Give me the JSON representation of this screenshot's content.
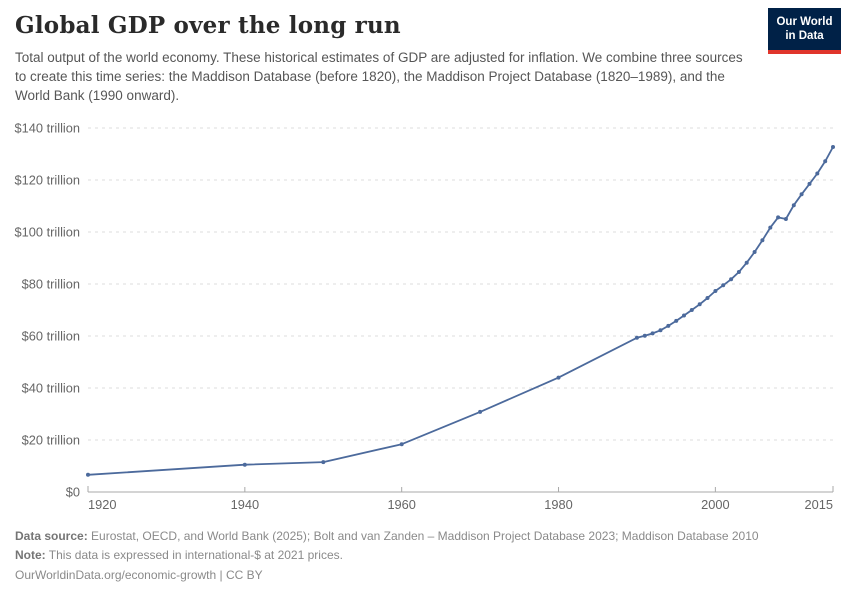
{
  "header": {
    "logo": {
      "line1": "Our World",
      "line2": "in Data",
      "bg_color": "#002147",
      "accent_color": "#e0352b"
    }
  },
  "chart_data": {
    "type": "line",
    "title": "Global GDP over the long run",
    "subtitle": "Total output of the world economy. These historical estimates of GDP are adjusted for inflation. We combine three sources to create this time series: the Maddison Database (before 1820), the Maddison Project Database (1820–1989), and the World Bank (1990 onward).",
    "series": [
      {
        "name": "World",
        "x": [
          1920,
          1940,
          1950,
          1960,
          1970,
          1980,
          1990,
          1991,
          1992,
          1993,
          1994,
          1995,
          1996,
          1997,
          1998,
          1999,
          2000,
          2001,
          2002,
          2003,
          2004,
          2005,
          2006,
          2007,
          2008,
          2009,
          2010,
          2011,
          2012,
          2013,
          2014,
          2015
        ],
        "values": [
          6.6,
          10.5,
          11.5,
          18.4,
          30.8,
          44.0,
          59.3,
          60.1,
          61.0,
          62.2,
          63.9,
          65.8,
          67.9,
          70.0,
          72.2,
          74.6,
          77.3,
          79.5,
          81.8,
          84.6,
          88.2,
          92.3,
          96.8,
          101.7,
          105.6,
          105.0,
          110.3,
          114.5,
          118.5,
          122.5,
          127.2,
          132.7
        ]
      }
    ],
    "xlabel": "",
    "ylabel": "",
    "xlim": [
      1920,
      2015
    ],
    "ylim": [
      0,
      140
    ],
    "x_ticks": [
      1920,
      1940,
      1960,
      1980,
      2000,
      2015
    ],
    "y_ticks": [
      {
        "value": 0,
        "label": "$0"
      },
      {
        "value": 20,
        "label": "$20 trillion"
      },
      {
        "value": 40,
        "label": "$40 trillion"
      },
      {
        "value": 60,
        "label": "$60 trillion"
      },
      {
        "value": 80,
        "label": "$80 trillion"
      },
      {
        "value": 100,
        "label": "$100 trillion"
      },
      {
        "value": 120,
        "label": "$120 trillion"
      },
      {
        "value": 140,
        "label": "$140 trillion"
      }
    ],
    "grid": true,
    "legend_position": "none",
    "line_color": "#4C6A9C",
    "gridline_color": "#dedede",
    "axis_color": "#a8a8a8"
  },
  "footer": {
    "data_source_label": "Data source:",
    "data_source": "Eurostat, OECD, and World Bank (2025); Bolt and van Zanden – Maddison Project Database 2023; Maddison Database 2010",
    "note_label": "Note:",
    "note": "This data is expressed in international-$ at 2021 prices.",
    "link": "OurWorldinData.org/economic-growth",
    "divider": "|",
    "license": "CC BY"
  }
}
